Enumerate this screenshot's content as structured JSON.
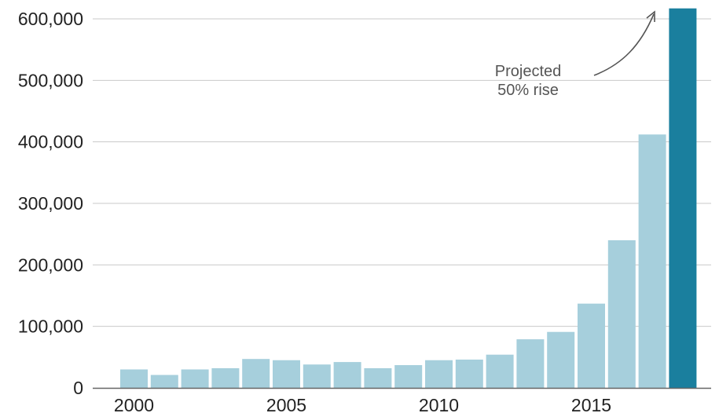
{
  "chart_data": {
    "type": "bar",
    "x": [
      2000,
      2001,
      2002,
      2003,
      2004,
      2005,
      2006,
      2007,
      2008,
      2009,
      2010,
      2011,
      2012,
      2013,
      2014,
      2015,
      2016,
      2017,
      2018
    ],
    "values": [
      30000,
      21000,
      30000,
      32000,
      47000,
      45000,
      38000,
      42000,
      32000,
      37000,
      45000,
      46000,
      54000,
      79000,
      91000,
      137000,
      240000,
      412000,
      617000
    ],
    "highlight_index": 18,
    "ylim": [
      0,
      600000
    ],
    "yticks": [
      0,
      100000,
      200000,
      300000,
      400000,
      500000,
      600000
    ],
    "ytick_labels": [
      "0",
      "100,000",
      "200,000",
      "300,000",
      "400,000",
      "500,000",
      "600,000"
    ],
    "xticks": [
      2000,
      2005,
      2010,
      2015
    ],
    "xtick_labels": [
      "2000",
      "2005",
      "2010",
      "2015"
    ],
    "grid": true,
    "title": "",
    "xlabel": "",
    "ylabel": "",
    "annotation": {
      "lines": [
        "Projected",
        "50% rise"
      ],
      "target_x": 2018
    },
    "colors": {
      "bar": "#a6cfdc",
      "highlight": "#1a7f9e",
      "grid": "#c9c9c9",
      "text": "#222222",
      "annotation": "#555555"
    }
  }
}
